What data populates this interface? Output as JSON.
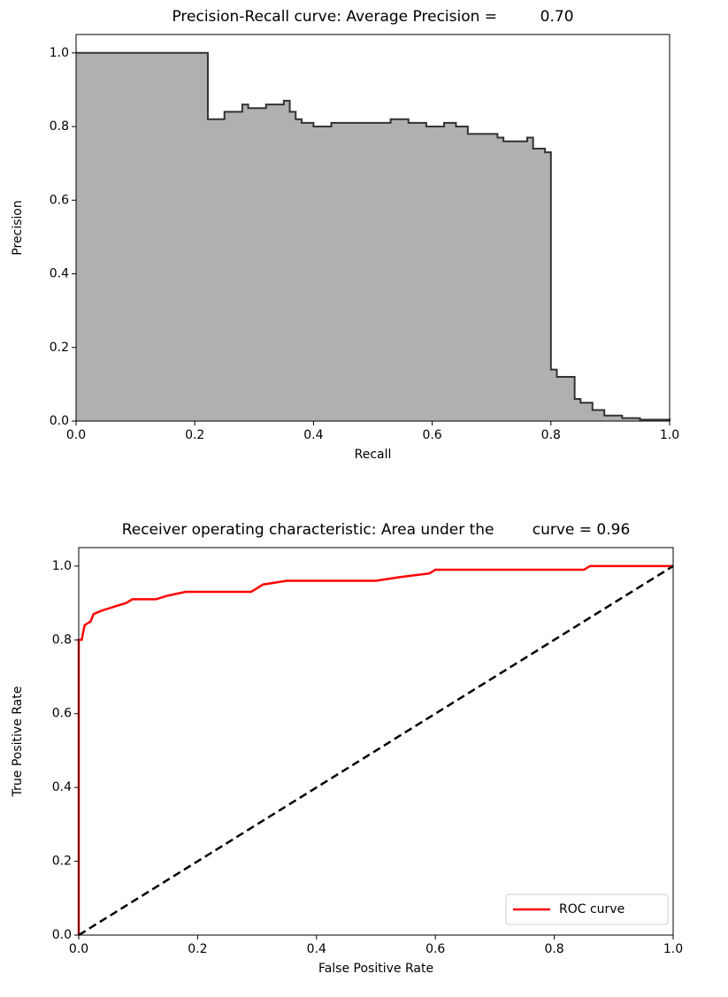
{
  "chart_data": [
    {
      "type": "step-area",
      "title": "Precision-Recall curve: Average Precision =         0.70",
      "x_label": "Recall",
      "y_label": "Precision",
      "x": [
        0,
        0.222,
        0.25,
        0.28,
        0.29,
        0.32,
        0.35,
        0.36,
        0.37,
        0.38,
        0.4,
        0.43,
        0.46,
        0.5,
        0.53,
        0.56,
        0.59,
        0.62,
        0.64,
        0.66,
        0.69,
        0.71,
        0.72,
        0.74,
        0.76,
        0.77,
        0.79,
        0.8,
        0.81,
        0.84,
        0.85,
        0.87,
        0.89,
        0.92,
        0.95,
        1.0
      ],
      "values": [
        1.0,
        0.82,
        0.84,
        0.86,
        0.85,
        0.86,
        0.87,
        0.84,
        0.82,
        0.81,
        0.8,
        0.81,
        0.81,
        0.81,
        0.82,
        0.81,
        0.8,
        0.81,
        0.8,
        0.78,
        0.78,
        0.77,
        0.76,
        0.76,
        0.77,
        0.74,
        0.73,
        0.14,
        0.12,
        0.06,
        0.05,
        0.03,
        0.015,
        0.008,
        0.004,
        0.0
      ],
      "color": "#b0b0b0",
      "line_color": "#333333",
      "xlim": [
        0,
        1
      ],
      "ylim": [
        0,
        1.05
      ],
      "xticks": [
        {
          "value": 0,
          "label": "0.0"
        },
        0.2,
        0.4,
        0.6,
        0.8,
        {
          "value": 1,
          "label": "1.0"
        }
      ],
      "yticks": [
        {
          "value": 0,
          "label": "0.0"
        },
        0.2,
        0.4,
        0.6,
        0.8,
        {
          "value": 1,
          "label": "1.0"
        }
      ]
    },
    {
      "type": "line",
      "title": "Receiver operating characteristic: Area under the        curve = 0.96",
      "x_label": "False Positive Rate",
      "y_label": "True Positive Rate",
      "series": [
        {
          "name": "ROC curve",
          "color": "#ff0000",
          "x": [
            0,
            0,
            0.005,
            0.01,
            0.02,
            0.025,
            0.04,
            0.06,
            0.08,
            0.09,
            0.13,
            0.15,
            0.18,
            0.29,
            0.3,
            0.31,
            0.35,
            0.5,
            0.54,
            0.59,
            0.6,
            0.85,
            0.86,
            1.0
          ],
          "values": [
            0,
            0.8,
            0.8,
            0.84,
            0.85,
            0.87,
            0.88,
            0.89,
            0.9,
            0.91,
            0.91,
            0.92,
            0.93,
            0.93,
            0.94,
            0.95,
            0.96,
            0.96,
            0.97,
            0.98,
            0.99,
            0.99,
            1.0,
            1.0
          ]
        },
        {
          "color": "#000000",
          "dashed": true,
          "x": [
            0,
            1
          ],
          "values": [
            0,
            1
          ]
        }
      ],
      "legend": "lower right",
      "xlim": [
        0,
        1
      ],
      "ylim": [
        0,
        1.05
      ],
      "xticks": [
        {
          "value": 0,
          "label": "0.0"
        },
        0.2,
        0.4,
        0.6,
        0.8,
        {
          "value": 1,
          "label": "1.0"
        }
      ],
      "yticks": [
        {
          "value": 0,
          "label": "0.0"
        },
        0.2,
        0.4,
        0.6,
        0.8,
        {
          "value": 1,
          "label": "1.0"
        }
      ]
    }
  ]
}
